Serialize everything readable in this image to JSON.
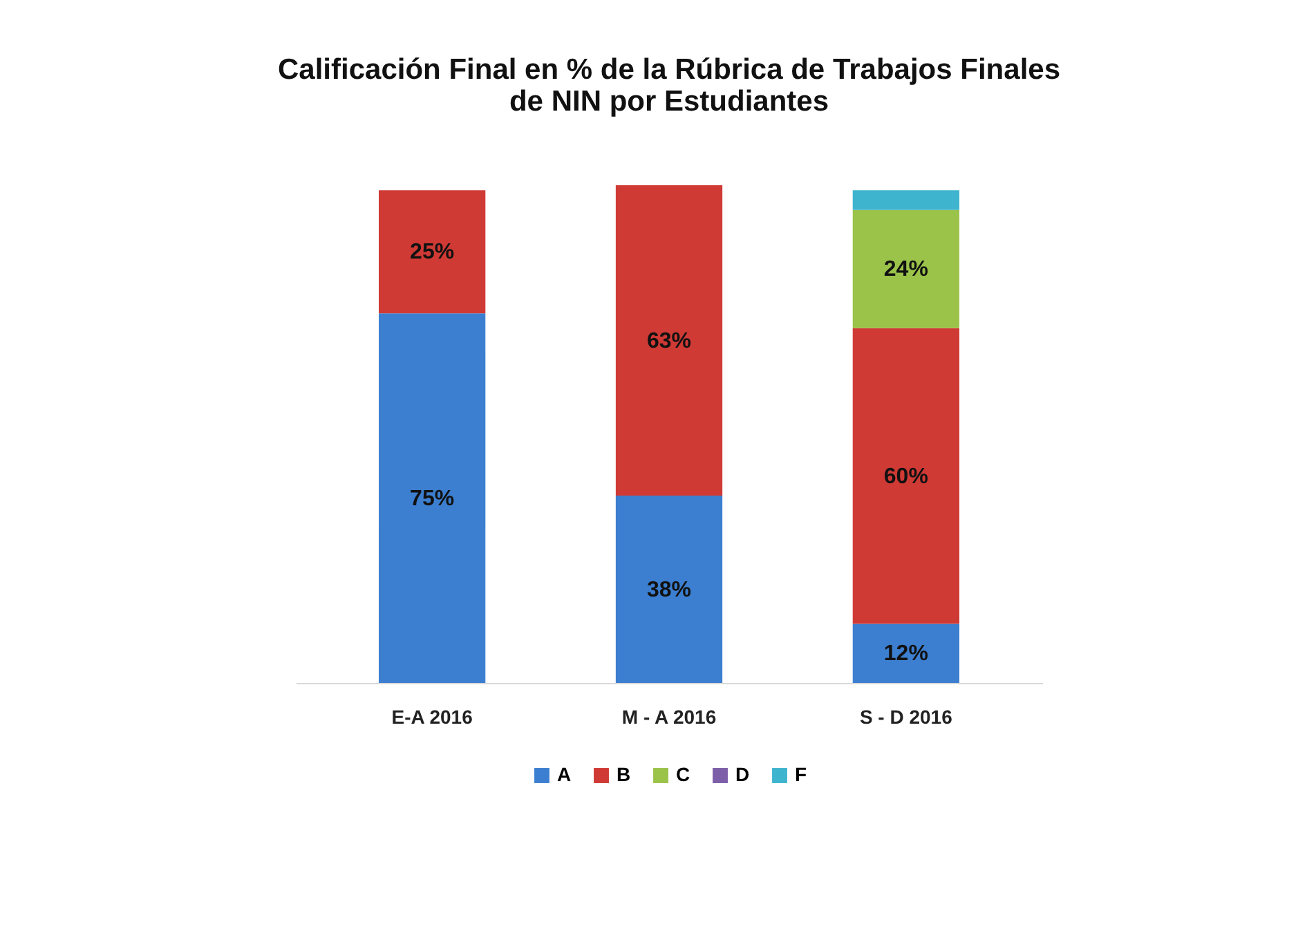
{
  "chart_data": {
    "type": "bar",
    "title": "Calificación Final en % de la Rúbrica de Trabajos Finales de NIN por Estudiantes",
    "categories": [
      "E-A 2016",
      "M - A 2016",
      "S - D 2016"
    ],
    "stacked": true,
    "legend": "bottom",
    "tick_labels": "x",
    "series": [
      {
        "name": "A",
        "color": "#3c7fd0",
        "values": [
          75,
          38,
          12
        ],
        "value_labels": [
          "75%",
          "38%",
          "12%"
        ]
      },
      {
        "name": "B",
        "color": "#d03a35",
        "values": [
          25,
          63,
          60
        ],
        "value_labels": [
          "25%",
          "63%",
          "60%"
        ]
      },
      {
        "name": "C",
        "color": "#9bc34a",
        "values": [
          null,
          null,
          24
        ],
        "value_labels": [
          null,
          null,
          "24%"
        ]
      },
      {
        "name": "D",
        "color": "#7d5ea8",
        "values": [
          null,
          null,
          null
        ]
      },
      {
        "name": "F",
        "color": "#3fb4cf",
        "values": [
          null,
          null,
          4
        ],
        "value_labels": [
          null,
          null,
          null
        ]
      }
    ]
  }
}
